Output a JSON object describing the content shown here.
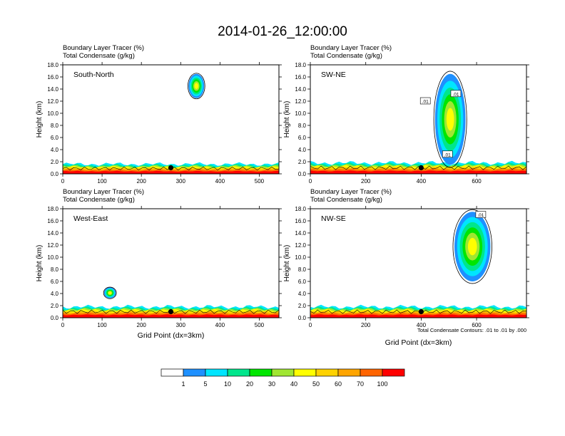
{
  "page": {
    "title": "2014-01-26_12:00:00"
  },
  "field_labels": {
    "line1": "Boundary Layer Tracer   (%)",
    "line2": "Total Condensate   (g/kg)"
  },
  "axes": {
    "ylabel": "Height (km)",
    "xlabel": "Grid Point (dx=3km)"
  },
  "contour_note": "Total Condensate Contours: .01 to .01 by .000",
  "colors": {
    "levels": [
      "#ffffff",
      "#1e90ff",
      "#00e5ff",
      "#00e68c",
      "#00e600",
      "#a0e632",
      "#ffff00",
      "#ffd200",
      "#ffa500",
      "#ff6400",
      "#ff0000"
    ],
    "contour": "#000000",
    "marker": "#000000"
  },
  "chart_data": [
    {
      "type": "heatmap",
      "panel_label": "South-North",
      "xlim": [
        0,
        550
      ],
      "ylim": [
        0,
        18
      ],
      "xticks": [
        0,
        100,
        200,
        300,
        400,
        500
      ],
      "yticks": [
        0,
        2,
        4,
        6,
        8,
        10,
        12,
        14,
        16,
        18
      ],
      "ytick_labels": [
        "0.0",
        "2.0",
        "4.0",
        "6.0",
        "8.0",
        "10.0",
        "12.0",
        "14.0",
        "16.0",
        "18.0"
      ],
      "boundary_layer_top_km": 1.6,
      "marker": {
        "x": 275,
        "y": 1.0
      },
      "plumes": [
        {
          "x": [
            320,
            360
          ],
          "y": [
            12.5,
            16.5
          ]
        }
      ],
      "contour_boxes": [],
      "show_xlabel": false,
      "show_note": false
    },
    {
      "type": "heatmap",
      "panel_label": "SW-NE",
      "xlim": [
        0,
        780
      ],
      "ylim": [
        0,
        18
      ],
      "xticks": [
        0,
        200,
        400,
        600
      ],
      "yticks": [
        0,
        2,
        4,
        6,
        8,
        10,
        12,
        14,
        16,
        18
      ],
      "ytick_labels": [
        "0.0",
        "2.0",
        "4.0",
        "6.0",
        "8.0",
        "10.0",
        "12.0",
        "14.0",
        "16.0",
        "18.0"
      ],
      "boundary_layer_top_km": 1.8,
      "marker": {
        "x": 400,
        "y": 1.0
      },
      "plumes": [
        {
          "x": [
            450,
            560
          ],
          "y": [
            1.5,
            16.5
          ]
        }
      ],
      "contour_boxes": [
        {
          "label": ".01",
          "x": 415,
          "y": 12.0
        },
        {
          "label": ".01",
          "x": 525,
          "y": 13.2
        },
        {
          "label": ".01",
          "x": 495,
          "y": 3.2
        }
      ],
      "show_xlabel": false,
      "show_note": false
    },
    {
      "type": "heatmap",
      "panel_label": "West-East",
      "xlim": [
        0,
        550
      ],
      "ylim": [
        0,
        18
      ],
      "xticks": [
        0,
        100,
        200,
        300,
        400,
        500
      ],
      "yticks": [
        0,
        2,
        4,
        6,
        8,
        10,
        12,
        14,
        16,
        18
      ],
      "ytick_labels": [
        "0.0",
        "2.0",
        "4.0",
        "6.0",
        "8.0",
        "10.0",
        "12.0",
        "14.0",
        "16.0",
        "18.0"
      ],
      "boundary_layer_top_km": 1.8,
      "marker": {
        "x": 275,
        "y": 1.0
      },
      "plumes": [
        {
          "x": [
            105,
            135
          ],
          "y": [
            3.2,
            5.0
          ]
        }
      ],
      "contour_boxes": [],
      "show_xlabel": true,
      "show_note": false
    },
    {
      "type": "heatmap",
      "panel_label": "NW-SE",
      "xlim": [
        0,
        780
      ],
      "ylim": [
        0,
        18
      ],
      "xticks": [
        0,
        200,
        400,
        600
      ],
      "yticks": [
        0,
        2,
        4,
        6,
        8,
        10,
        12,
        14,
        16,
        18
      ],
      "ytick_labels": [
        "0.0",
        "2.0",
        "4.0",
        "6.0",
        "8.0",
        "10.0",
        "12.0",
        "14.0",
        "16.0",
        "18.0"
      ],
      "boundary_layer_top_km": 1.8,
      "marker": {
        "x": 400,
        "y": 1.0
      },
      "plumes": [
        {
          "x": [
            520,
            650
          ],
          "y": [
            6.0,
            17.5
          ]
        }
      ],
      "contour_boxes": [
        {
          "label": ".01",
          "x": 615,
          "y": 17.0
        }
      ],
      "show_xlabel": true,
      "show_note": true
    }
  ],
  "colorbar": {
    "labels": [
      "1",
      "5",
      "10",
      "20",
      "30",
      "40",
      "50",
      "60",
      "70",
      "100"
    ]
  }
}
